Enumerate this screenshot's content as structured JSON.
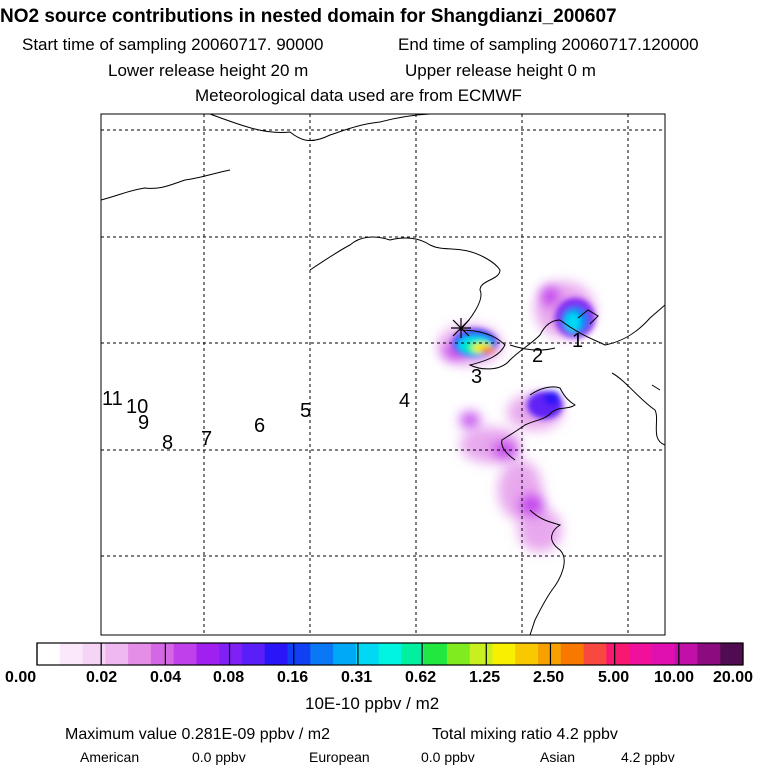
{
  "header": {
    "title": "NO2 source contributions in nested domain for Shangdianzi_200607",
    "start_label": "Start time of sampling 20060717. 90000",
    "end_label": "End time of sampling 20060717.120000",
    "lower_label": "Lower release height   20 m",
    "upper_label": "Upper release height    0 m",
    "met_label": "Meteorological data used are from ECMWF"
  },
  "map": {
    "trajectory_markers": [
      "1",
      "2",
      "3",
      "4",
      "5",
      "6",
      "7",
      "8",
      "9",
      "10",
      "11"
    ]
  },
  "colorbar": {
    "colors": [
      "#ffffff",
      "#fbe8fb",
      "#f6d4f6",
      "#f0b8f0",
      "#e48ee8",
      "#d468e4",
      "#c040ec",
      "#a020f0",
      "#8020f4",
      "#5a1ef8",
      "#2a14f8",
      "#1040f4",
      "#0a78f4",
      "#00a8f8",
      "#00d8f4",
      "#00f4e0",
      "#00f0a0",
      "#20e840",
      "#80ec20",
      "#c8f020",
      "#f8f000",
      "#f8c800",
      "#f8a000",
      "#f87800",
      "#f84840",
      "#f81870",
      "#f0109c",
      "#e010b0",
      "#c010a8",
      "#8c0c80",
      "#500c50"
    ],
    "tick_labels": [
      "0.00",
      "0.02",
      "0.04",
      "0.08",
      "0.16",
      "0.31",
      "0.62",
      "1.25",
      "2.50",
      "5.00",
      "10.00",
      "20.00"
    ],
    "units": "10E-10 ppbv / m2"
  },
  "footer": {
    "max_value": "Maximum value  0.281E-09 ppbv / m2",
    "total_mixing": "Total mixing ratio      4.2 ppbv",
    "american_label": "American",
    "american_value": "0.0 ppbv",
    "european_label": "European",
    "european_value": "0.0 ppbv",
    "asian_label": "Asian",
    "asian_value": "4.2 ppbv"
  }
}
